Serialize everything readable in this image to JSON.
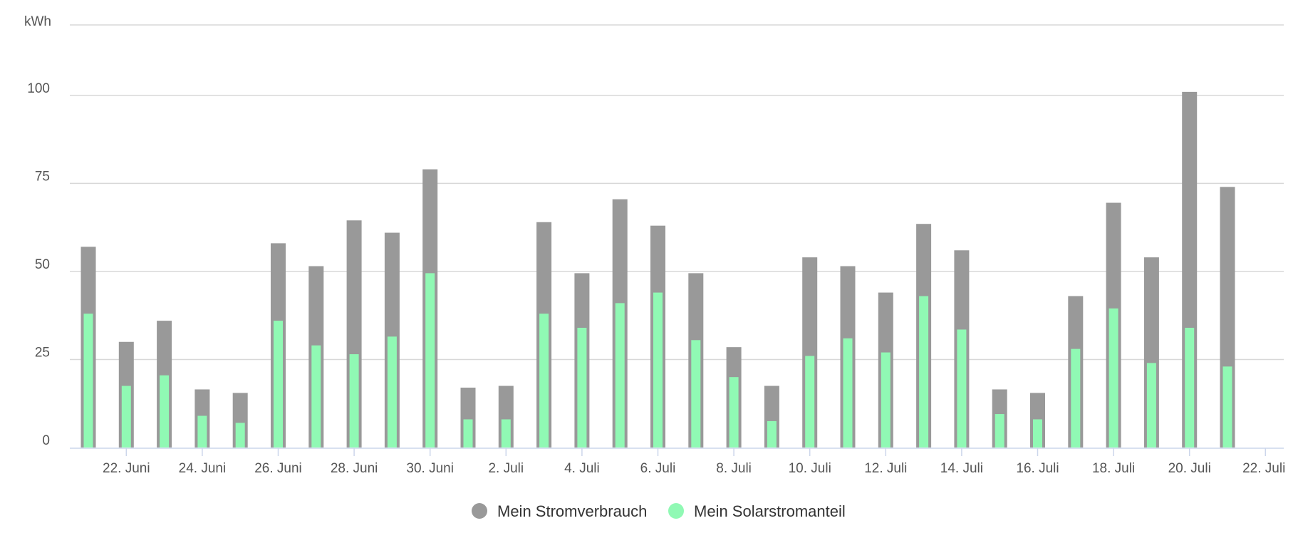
{
  "chart_data": {
    "type": "bar",
    "y_unit_label": "kWh",
    "ylim": [
      0,
      120
    ],
    "y_ticks": [
      0,
      25,
      50,
      75,
      100
    ],
    "grid": true,
    "legend_position": "bottom-center",
    "categories": [
      "21. Juni",
      "22. Juni",
      "23. Juni",
      "24. Juni",
      "25. Juni",
      "26. Juni",
      "27. Juni",
      "28. Juni",
      "29. Juni",
      "30. Juni",
      "1. Juli",
      "2. Juli",
      "3. Juli",
      "4. Juli",
      "5. Juli",
      "6. Juli",
      "7. Juli",
      "8. Juli",
      "9. Juli",
      "10. Juli",
      "11. Juli",
      "12. Juli",
      "13. Juli",
      "14. Juli",
      "15. Juli",
      "16. Juli",
      "17. Juli",
      "18. Juli",
      "19. Juli",
      "20. Juli",
      "21. Juli"
    ],
    "x_tick_labels": [
      "22. Juni",
      "24. Juni",
      "26. Juni",
      "28. Juni",
      "30. Juni",
      "2. Juli",
      "4. Juli",
      "6. Juli",
      "8. Juli",
      "10. Juli",
      "12. Juli",
      "14. Juli",
      "16. Juli",
      "18. Juli",
      "20. Juli",
      "22. Juli"
    ],
    "series": [
      {
        "name": "Mein Stromverbrauch",
        "color": "#999999",
        "values": [
          57,
          30,
          36,
          16.5,
          15.5,
          58,
          51.5,
          64.5,
          61,
          79,
          17,
          17.5,
          64,
          49.5,
          70.5,
          63,
          49.5,
          28.5,
          17.5,
          54,
          51.5,
          44,
          63.5,
          56,
          16.5,
          15.5,
          43,
          69.5,
          54,
          101,
          74
        ]
      },
      {
        "name": "Mein Solarstromanteil",
        "color": "#90f9b4",
        "values": [
          38,
          17.5,
          20.5,
          9,
          7,
          36,
          29,
          26.5,
          31.5,
          49.5,
          8,
          8,
          38,
          34,
          41,
          44,
          30.5,
          20,
          7.5,
          26,
          31,
          27,
          43,
          33.5,
          9.5,
          8,
          28,
          39.5,
          24,
          34,
          23
        ]
      }
    ]
  }
}
